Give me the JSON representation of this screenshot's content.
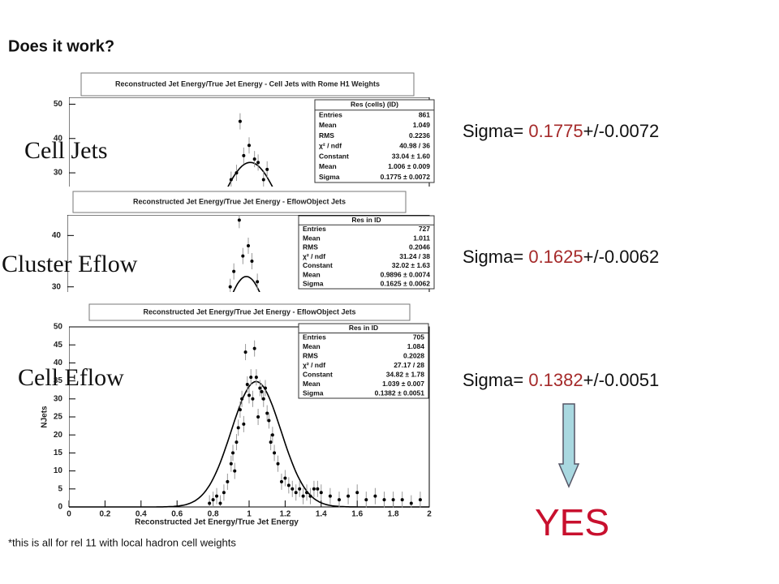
{
  "title": "Does it work?",
  "panels": [
    {
      "label": "Cell Jets",
      "plot_title": "Reconstructed Jet Energy/True Jet Energy - Cell Jets with Rome H1 Weights",
      "stats_title": "Res (cells) (ID)",
      "stats": [
        [
          "Entries",
          "861"
        ],
        [
          "Mean",
          "1.049"
        ],
        [
          "RMS",
          "0.2236"
        ],
        [
          "χ² / ndf",
          "40.98 / 36"
        ],
        [
          "Constant",
          "33.04 ± 1.60"
        ],
        [
          "Mean",
          "1.006 ± 0.009"
        ],
        [
          "Sigma",
          "0.1775 ± 0.0072"
        ]
      ],
      "sigma_prefix": "Sigma= ",
      "sigma_value": "0.1775",
      "sigma_error": "+/-0.0072",
      "chart": {
        "type": "scatter",
        "xlim": [
          0,
          2
        ],
        "ylim": [
          26,
          52
        ],
        "yticks": [
          30,
          40,
          50
        ],
        "x": [
          0.9,
          0.93,
          0.95,
          0.97,
          1.0,
          1.03,
          1.05,
          1.08,
          1.1
        ],
        "values": [
          28,
          30,
          45,
          35,
          38,
          34,
          33,
          28,
          31
        ],
        "fit": {
          "constant": 33.04,
          "mean": 1.006,
          "sigma": 0.1775
        }
      }
    },
    {
      "label": "Cluster Eflow",
      "plot_title": "Reconstructed Jet Energy/True Jet Energy - EflowObject Jets",
      "stats_title": "Res in ID",
      "stats": [
        [
          "Entries",
          "727"
        ],
        [
          "Mean",
          "1.011"
        ],
        [
          "RMS",
          "0.2046"
        ],
        [
          "χ² / ndf",
          "31.24 / 38"
        ],
        [
          "Constant",
          "32.02 ± 1.63"
        ],
        [
          "Mean",
          "0.9896 ± 0.0074"
        ],
        [
          "Sigma",
          "0.1625 ± 0.0062"
        ]
      ],
      "sigma_prefix": "Sigma= ",
      "sigma_value": "0.1625",
      "sigma_error": "+/-0.0062",
      "chart": {
        "type": "scatter",
        "xlim": [
          0,
          2
        ],
        "ylim": [
          29,
          44
        ],
        "yticks": [
          30,
          40
        ],
        "x": [
          0.9,
          0.92,
          0.95,
          0.97,
          1.0,
          1.02,
          1.05
        ],
        "values": [
          30,
          33,
          43,
          36,
          38,
          35,
          31
        ],
        "fit": {
          "constant": 32.02,
          "mean": 0.9896,
          "sigma": 0.1625
        }
      }
    },
    {
      "label": "Cell Eflow",
      "plot_title": "Reconstructed Jet Energy/True Jet Energy - EflowObject Jets",
      "stats_title": "Res in ID",
      "stats": [
        [
          "Entries",
          "705"
        ],
        [
          "Mean",
          "1.084"
        ],
        [
          "RMS",
          "0.2028"
        ],
        [
          "χ² / ndf",
          "27.17 / 28"
        ],
        [
          "Constant",
          "34.82 ± 1.78"
        ],
        [
          "Mean",
          "1.039 ± 0.007"
        ],
        [
          "Sigma",
          "0.1382 ± 0.0051"
        ]
      ],
      "sigma_prefix": "Sigma= ",
      "sigma_value": "0.1382",
      "sigma_error": "+/-0.0051",
      "chart": {
        "type": "scatter",
        "xlim": [
          0,
          2
        ],
        "ylim": [
          0,
          50
        ],
        "xticks": [
          0,
          0.2,
          0.4,
          0.6,
          0.8,
          1,
          1.2,
          1.4,
          1.6,
          1.8,
          2
        ],
        "yticks": [
          0,
          5,
          10,
          15,
          20,
          25,
          30,
          35,
          40,
          45,
          50
        ],
        "x_label": "Reconstructed Jet Energy/True Jet Energy",
        "y_label": "NJets",
        "x": [
          0.78,
          0.8,
          0.82,
          0.84,
          0.86,
          0.88,
          0.9,
          0.91,
          0.92,
          0.93,
          0.94,
          0.95,
          0.96,
          0.97,
          0.98,
          0.99,
          1.0,
          1.01,
          1.02,
          1.03,
          1.04,
          1.05,
          1.06,
          1.07,
          1.08,
          1.09,
          1.1,
          1.11,
          1.12,
          1.13,
          1.14,
          1.16,
          1.18,
          1.2,
          1.22,
          1.24,
          1.26,
          1.28,
          1.3,
          1.32,
          1.34,
          1.36,
          1.38,
          1.4,
          1.45,
          1.5,
          1.55,
          1.6,
          1.65,
          1.7,
          1.75,
          1.8,
          1.85,
          1.9,
          1.95
        ],
        "values": [
          1,
          2,
          3,
          1,
          4,
          7,
          12,
          15,
          10,
          18,
          22,
          27,
          30,
          23,
          43,
          34,
          31,
          36,
          30,
          44,
          36,
          25,
          33,
          32,
          30,
          33,
          26,
          24,
          18,
          20,
          15,
          12,
          7,
          8,
          6,
          5,
          4,
          5,
          3,
          4,
          3,
          5,
          5,
          4,
          3,
          2,
          3,
          4,
          2,
          3,
          2,
          2,
          2,
          1,
          2
        ],
        "fit": {
          "constant": 34.82,
          "mean": 1.039,
          "sigma": 0.1382
        }
      }
    }
  ],
  "note": "*this is all for rel 11 with local hadron cell weights",
  "answer": "YES"
}
